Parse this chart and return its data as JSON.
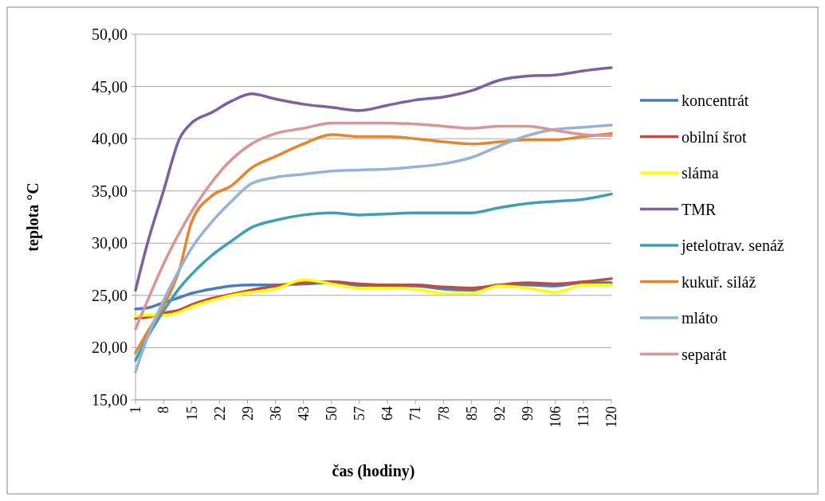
{
  "chart_data": {
    "type": "line",
    "xlabel": "čas (hodiny)",
    "ylabel": "teplota °C",
    "x": [
      1,
      4,
      8,
      12,
      15,
      20,
      25,
      30,
      36,
      43,
      50,
      57,
      64,
      71,
      78,
      85,
      92,
      99,
      106,
      113,
      120
    ],
    "xlim": [
      1,
      120
    ],
    "xticks": [
      1,
      8,
      15,
      22,
      29,
      36,
      43,
      50,
      57,
      64,
      71,
      78,
      85,
      92,
      99,
      106,
      113,
      120
    ],
    "ylim": [
      15,
      50
    ],
    "yticks": [
      {
        "value": 15,
        "label": "15,00"
      },
      {
        "value": 20,
        "label": "20,00"
      },
      {
        "value": 25,
        "label": "25,00"
      },
      {
        "value": 30,
        "label": "30,00"
      },
      {
        "value": 35,
        "label": "35,00"
      },
      {
        "value": 40,
        "label": "40,00"
      },
      {
        "value": 45,
        "label": "45,00"
      },
      {
        "value": 50,
        "label": "50,00"
      }
    ],
    "grid": "y",
    "legend": "right",
    "marker": "none",
    "line_style": "solid",
    "series": [
      {
        "name": "koncentrát",
        "color": "#4a7ebb",
        "values": [
          23.7,
          23.8,
          24.3,
          24.8,
          25.2,
          25.6,
          25.9,
          26,
          26,
          26.1,
          26.2,
          25.9,
          25.9,
          25.9,
          25.6,
          25.5,
          26,
          26,
          25.9,
          26.2,
          26.2
        ]
      },
      {
        "name": "obilní šrot",
        "color": "#be4b48",
        "values": [
          22.8,
          22.9,
          23.3,
          23.6,
          24.1,
          24.7,
          25.1,
          25.5,
          25.9,
          26.2,
          26.3,
          26.1,
          26,
          26,
          25.8,
          25.7,
          26,
          26.2,
          26.1,
          26.3,
          26.6
        ]
      },
      {
        "name": "sláma",
        "color": "#ffff00",
        "values": [
          23,
          23.1,
          23.1,
          23.4,
          23.9,
          24.5,
          25,
          25.3,
          25.6,
          26.5,
          26.1,
          25.7,
          25.7,
          25.6,
          25.2,
          25.2,
          25.9,
          25.7,
          25.3,
          26,
          26
        ]
      },
      {
        "name": "TMR",
        "color": "#7d60a0",
        "values": [
          25.5,
          30,
          35,
          40,
          41.5,
          42.5,
          43.6,
          44.3,
          43.8,
          43.3,
          43,
          42.7,
          43.2,
          43.7,
          44,
          44.6,
          45.6,
          46,
          46.1,
          46.5,
          46.8
        ]
      },
      {
        "name": "jetelotrav. senáž",
        "color": "#3fa0b4",
        "values": [
          18.8,
          21,
          23.5,
          25.7,
          27,
          28.8,
          30.2,
          31.5,
          32.2,
          32.7,
          32.9,
          32.7,
          32.8,
          32.9,
          32.9,
          32.9,
          33.4,
          33.8,
          34,
          34.2,
          34.7
        ]
      },
      {
        "name": "kukuř. siláž",
        "color": "#e6852f",
        "values": [
          19.5,
          21.5,
          24,
          27.5,
          32,
          34.5,
          35.5,
          37.2,
          38.3,
          39.5,
          40.4,
          40.2,
          40.2,
          40,
          39.7,
          39.5,
          39.7,
          39.9,
          39.9,
          40.2,
          40.5
        ]
      },
      {
        "name": "mláto",
        "color": "#95b3d7",
        "values": [
          17.7,
          21,
          24.5,
          27.5,
          29.5,
          32,
          34,
          35.7,
          36.3,
          36.6,
          36.9,
          37,
          37.1,
          37.3,
          37.6,
          38.2,
          39.3,
          40.3,
          40.9,
          41.1,
          41.3
        ]
      },
      {
        "name": "separát",
        "color": "#d99694",
        "values": [
          21.8,
          24.5,
          28,
          31,
          33,
          35.8,
          38,
          39.5,
          40.5,
          41,
          41.5,
          41.5,
          41.5,
          41.4,
          41.2,
          41,
          41.2,
          41.2,
          40.8,
          40.4,
          40.3
        ]
      }
    ]
  }
}
